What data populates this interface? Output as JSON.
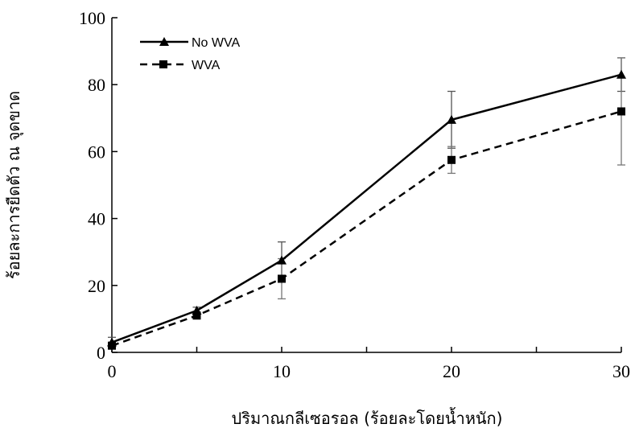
{
  "chart_data": {
    "type": "line",
    "xlabel": "ปริมาณกลีเซอรอล (ร้อยละโดยน้ำหนัก)",
    "ylabel": "ร้อยละการยืดตัว ณ จุดขาด",
    "xlim": [
      0,
      30
    ],
    "ylim": [
      0,
      100
    ],
    "xticks": [
      0,
      10,
      20,
      30
    ],
    "yticks": [
      0,
      20,
      40,
      60,
      80,
      100
    ],
    "grid": false,
    "legend_position": "top-left",
    "series": [
      {
        "name": "No WVA",
        "marker": "triangle",
        "line_style": "solid",
        "color": "#000000",
        "x": [
          0,
          5,
          10,
          20,
          30
        ],
        "y": [
          3,
          12.5,
          27.5,
          69.5,
          83
        ],
        "error": [
          1.5,
          1,
          5.5,
          8.5,
          5
        ]
      },
      {
        "name": "WVA",
        "marker": "square",
        "line_style": "dashed",
        "color": "#000000",
        "x": [
          0,
          5,
          10,
          20,
          30
        ],
        "y": [
          2,
          11,
          22,
          57.5,
          72
        ],
        "error": [
          1,
          1,
          6,
          4,
          16
        ]
      }
    ]
  }
}
